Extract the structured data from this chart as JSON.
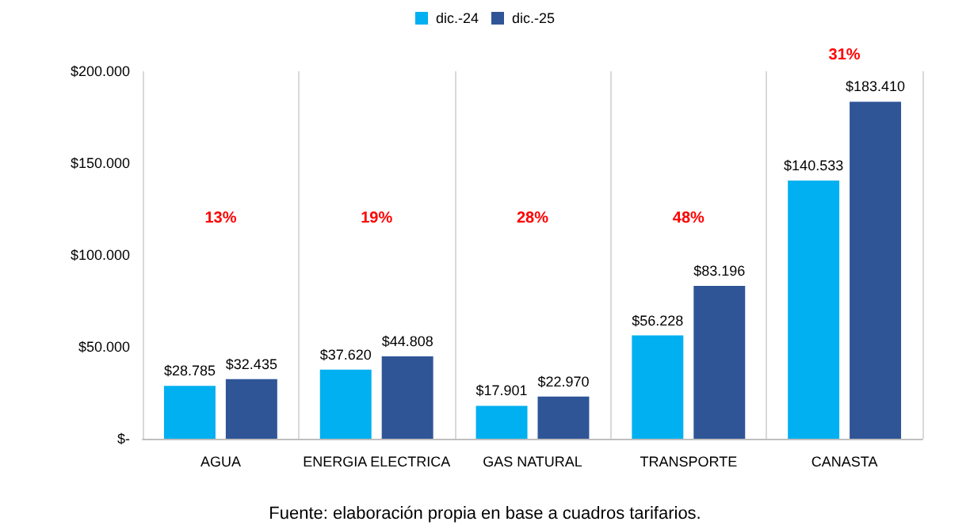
{
  "chart_data": {
    "type": "bar",
    "categories": [
      "AGUA",
      "ENERGIA ELECTRICA",
      "GAS NATURAL",
      "TRANSPORTE",
      "CANASTA"
    ],
    "series": [
      {
        "name": "dic.-24",
        "color": "#00b0f0",
        "values": [
          28785,
          37620,
          17901,
          56228,
          140533
        ],
        "value_labels": [
          "$28.785",
          "$37.620",
          "$17.901",
          "$56.228",
          "$140.533"
        ]
      },
      {
        "name": "dic.-25",
        "color": "#2f5597",
        "values": [
          32435,
          44808,
          22970,
          83196,
          183410
        ],
        "value_labels": [
          "$32.435",
          "$44.808",
          "$22.970",
          "$83.196",
          "$183.410"
        ]
      }
    ],
    "ylim": [
      0,
      200000
    ],
    "yticks": [
      {
        "value": 0,
        "label": "$-"
      },
      {
        "value": 50000,
        "label": "$50.000"
      },
      {
        "value": 100000,
        "label": "$100.000"
      },
      {
        "value": 150000,
        "label": "$150.000"
      },
      {
        "value": 200000,
        "label": "$200.000"
      }
    ],
    "grid": "x",
    "legend": "top",
    "annotations": [
      "13%",
      "19%",
      "28%",
      "48%",
      "31%",
      "Fuente: elaboración propia en base a cuadros tarifarios."
    ]
  }
}
